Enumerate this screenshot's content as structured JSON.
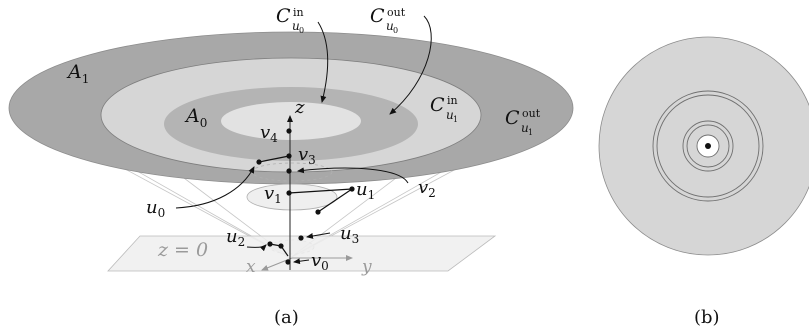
{
  "figure_a": {
    "caption": "(a)",
    "regions": {
      "A1": {
        "base": "A",
        "sub": "1"
      },
      "A0": {
        "base": "A",
        "sub": "0"
      },
      "C_u0_in": {
        "base": "C",
        "sub": "u",
        "subsub": "0",
        "sup": "in"
      },
      "C_u0_out": {
        "base": "C",
        "sub": "u",
        "subsub": "0",
        "sup": "out"
      },
      "C_u1_in": {
        "base": "C",
        "sub": "u",
        "subsub": "1",
        "sup": "in"
      },
      "C_u1_out": {
        "base": "C",
        "sub": "u",
        "subsub": "1",
        "sup": "out"
      }
    },
    "axes": {
      "z": "z",
      "x": "x",
      "y": "y",
      "plane": "z = 0"
    },
    "vertices": {
      "v0": {
        "base": "v",
        "sub": "0"
      },
      "v1": {
        "base": "v",
        "sub": "1"
      },
      "v2": {
        "base": "v",
        "sub": "2"
      },
      "v3": {
        "base": "v",
        "sub": "3"
      },
      "v4": {
        "base": "v",
        "sub": "4"
      },
      "u0": {
        "base": "u",
        "sub": "0"
      },
      "u1": {
        "base": "u",
        "sub": "1"
      },
      "u2": {
        "base": "u",
        "sub": "2"
      },
      "u3": {
        "base": "u",
        "sub": "3"
      }
    }
  },
  "figure_b": {
    "caption": "(b)"
  },
  "colors": {
    "outer_annulus": "#a8a8a8",
    "light_fill": "#d6d6d6",
    "mid_annulus": "#b4b4b4",
    "center_disk": "#e2e2e2",
    "plane": "#eeeeee",
    "lines": "#bdbdbd",
    "ink": "#111111"
  }
}
